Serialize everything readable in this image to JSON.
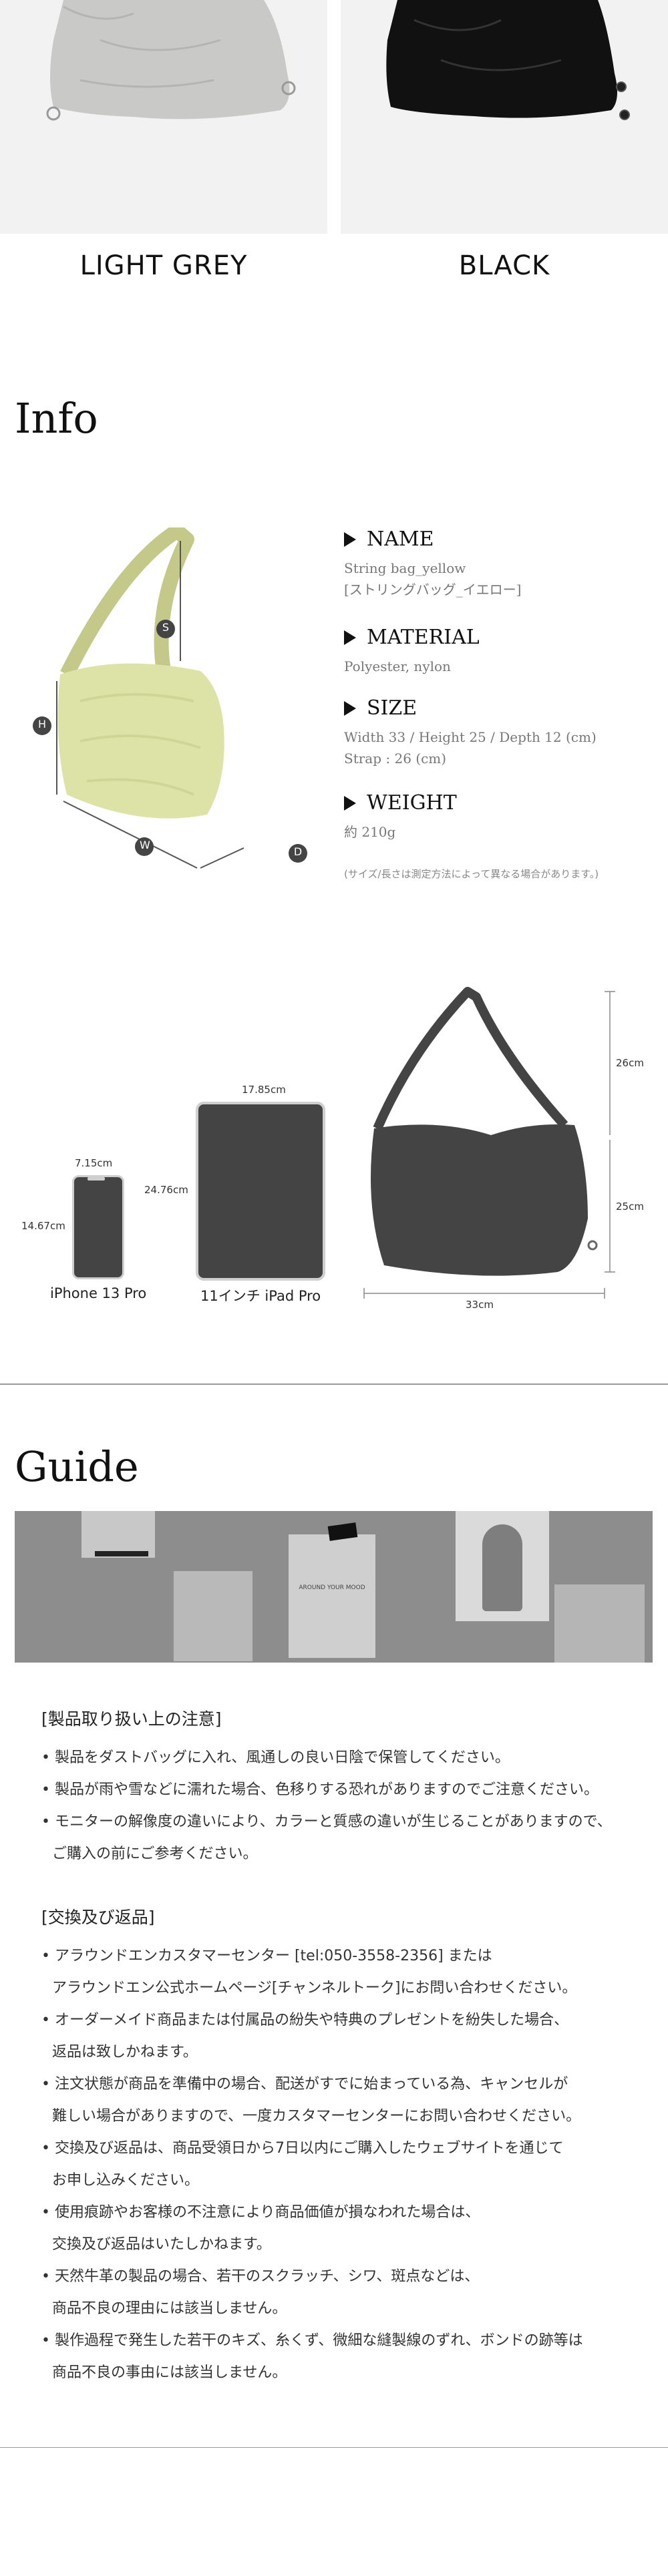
{
  "colors": [
    {
      "label": "LIGHT GREY",
      "swatch": "#f2f2f2",
      "bag": "#c9c9c7"
    },
    {
      "label": "BLACK",
      "swatch": "#f2f2f2",
      "bag": "#111111"
    }
  ],
  "info": {
    "title": "Info",
    "specs": [
      {
        "heading": "NAME",
        "lines": [
          "String bag_yellow",
          "[ストリングバッグ_イエロー]"
        ]
      },
      {
        "heading": "MATERIAL",
        "lines": [
          "Polyester, nylon"
        ]
      },
      {
        "heading": "SIZE",
        "lines": [
          "Width 33 / Height 25 / Depth 12 (cm)",
          "Strap : 26 (cm)"
        ]
      },
      {
        "heading": "WEIGHT",
        "lines": [
          "約 210g"
        ]
      }
    ],
    "note": "(サイズ/長さは測定方法によって異なる場合があります。)",
    "markers": {
      "s": "S",
      "h": "H",
      "w": "W",
      "d": "D"
    }
  },
  "sizes": {
    "iphone": {
      "label": "iPhone 13 Pro",
      "width": "7.15cm",
      "height": "14.67cm"
    },
    "ipad": {
      "label": "11インチ iPad Pro",
      "width": "17.85cm",
      "height": "24.76cm"
    },
    "bag": {
      "strap": "26cm",
      "body": "25cm",
      "width": "33cm"
    }
  },
  "guide": {
    "title": "Guide",
    "handling": {
      "heading": "[製品取り扱い上の注意]",
      "lines": [
        {
          "text": "• 製品をダストバッグに入れ、風通しの良い日陰で保管してください。",
          "indent": false
        },
        {
          "text": "• 製品が雨や雪などに濡れた場合、色移りする恐れがありますのでご注意ください。",
          "indent": false
        },
        {
          "text": "• モニターの解像度の違いにより、カラーと質感の違いが生じることがありますので、",
          "indent": false
        },
        {
          "text": "ご購入の前にご参考ください。",
          "indent": true
        }
      ]
    },
    "returns": {
      "heading": "[交換及び返品]",
      "lines": [
        {
          "text": "• アラウンドエンカスタマーセンター [tel:050-3558-2356] または",
          "indent": false
        },
        {
          "text": "アラウンドエン公式ホームページ[チャンネルトーク]にお問い合わせください。",
          "indent": true
        },
        {
          "text": "• オーダーメイド商品または付属品の紛失や特典のプレゼントを紛失した場合、",
          "indent": false
        },
        {
          "text": "返品は致しかねます。",
          "indent": true
        },
        {
          "text": "• 注文状態が商品を準備中の場合、配送がすでに始まっている為、キャンセルが",
          "indent": false
        },
        {
          "text": "難しい場合がありますので、一度カスタマーセンターにお問い合わせください。",
          "indent": true
        },
        {
          "text": "• 交換及び返品は、商品受領日から7日以内にご購入したウェブサイトを通じて",
          "indent": false
        },
        {
          "text": "お申し込みください。",
          "indent": true
        },
        {
          "text": "• 使用痕跡やお客様の不注意により商品価値が損なわれた場合は、",
          "indent": false
        },
        {
          "text": "交換及び返品はいたしかねます。",
          "indent": true
        },
        {
          "text": "• 天然牛革の製品の場合、若干のスクラッチ、シワ、斑点などは、",
          "indent": false
        },
        {
          "text": "商品不良の理由には該当しません。",
          "indent": true
        },
        {
          "text": "• 製作過程で発生した若干のキズ、糸くず、微細な縫製線のずれ、ボンドの跡等は",
          "indent": false
        },
        {
          "text": "商品不良の事由には該当しません。",
          "indent": true
        }
      ]
    },
    "photo_poster_text": [
      "AROUND YOUR MOOD"
    ]
  }
}
